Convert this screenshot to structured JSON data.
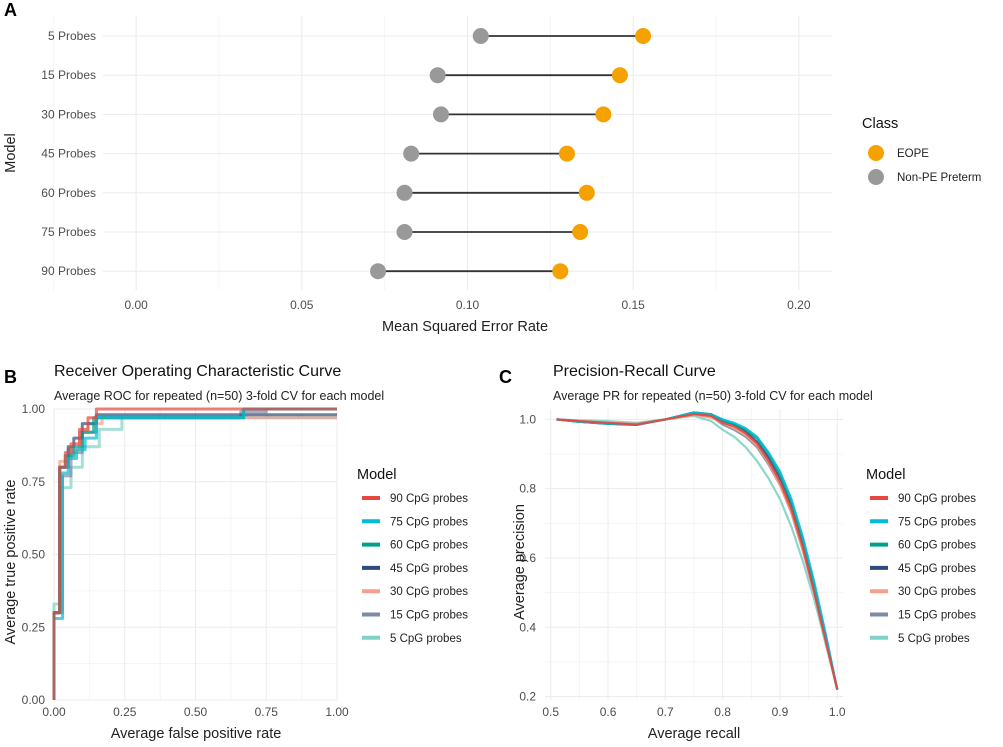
{
  "colors": {
    "eope": "#f5a100",
    "nonpe": "#999999",
    "segment": "#333333",
    "p90": "#e8473f",
    "p75": "#00bcd6",
    "p60": "#00a08a",
    "p45": "#2f4b7c",
    "p30": "#f4a08a",
    "p15": "#7e8aa6",
    "p5": "#7fd3c6"
  },
  "chart_data": [
    {
      "panel": "A",
      "type": "scatter",
      "subtype": "dumbbell",
      "title": "",
      "xlabel": "Mean Squared Error Rate",
      "ylabel": "Model",
      "xlim": [
        -0.01,
        0.21
      ],
      "xticks": [
        "0.00",
        "0.05",
        "0.10",
        "0.15",
        "0.20"
      ],
      "xtick_values": [
        0.0,
        0.05,
        0.1,
        0.15,
        0.2
      ],
      "categories": [
        "5 Probes",
        "15 Probes",
        "30 Probes",
        "45 Probes",
        "60 Probes",
        "75 Probes",
        "90 Probes"
      ],
      "legend": {
        "title": "Class",
        "position": "right",
        "items": [
          "EOPE",
          "Non-PE Preterm"
        ]
      },
      "series": [
        {
          "name": "EOPE",
          "values": [
            0.153,
            0.146,
            0.141,
            0.13,
            0.136,
            0.134,
            0.128
          ]
        },
        {
          "name": "Non-PE Preterm",
          "values": [
            0.104,
            0.091,
            0.092,
            0.083,
            0.081,
            0.081,
            0.073
          ]
        }
      ]
    },
    {
      "panel": "B",
      "type": "line",
      "subtype": "step",
      "title": "Receiver Operating Characteristic Curve",
      "subtitle": "Average ROC for repeated (n=50) 3-fold CV for each model",
      "xlabel": "Average false positive rate",
      "ylabel": "Average true positive rate",
      "xlim": [
        0,
        1
      ],
      "ylim": [
        0,
        1
      ],
      "xticks": [
        "0.00",
        "0.25",
        "0.50",
        "0.75",
        "1.00"
      ],
      "yticks": [
        "0.00",
        "0.25",
        "0.50",
        "0.75",
        "1.00"
      ],
      "legend": {
        "title": "Model",
        "position": "right"
      },
      "series": [
        {
          "name": "90 CpG probes",
          "x": [
            0,
            0,
            0.02,
            0.02,
            0.04,
            0.04,
            0.06,
            0.06,
            0.09,
            0.09,
            0.12,
            0.12,
            0.15,
            0.15,
            1.0
          ],
          "y": [
            0,
            0.3,
            0.3,
            0.8,
            0.8,
            0.85,
            0.85,
            0.88,
            0.88,
            0.93,
            0.93,
            0.97,
            0.97,
            1.0,
            1.0
          ]
        },
        {
          "name": "75 CpG probes",
          "x": [
            0,
            0,
            0.03,
            0.03,
            0.05,
            0.05,
            0.08,
            0.08,
            0.11,
            0.11,
            0.15,
            0.15,
            0.67,
            0.67,
            1.0
          ],
          "y": [
            0,
            0.28,
            0.28,
            0.78,
            0.78,
            0.83,
            0.83,
            0.86,
            0.86,
            0.9,
            0.9,
            0.97,
            0.97,
            1.0,
            1.0
          ]
        },
        {
          "name": "60 CpG probes",
          "x": [
            0,
            0,
            0.02,
            0.02,
            0.04,
            0.04,
            0.07,
            0.07,
            0.1,
            0.1,
            0.14,
            0.14,
            0.67,
            0.67,
            1.0
          ],
          "y": [
            0,
            0.3,
            0.3,
            0.8,
            0.8,
            0.84,
            0.84,
            0.87,
            0.87,
            0.92,
            0.92,
            0.97,
            0.97,
            1.0,
            1.0
          ]
        },
        {
          "name": "45 CpG probes",
          "x": [
            0,
            0,
            0.02,
            0.02,
            0.05,
            0.05,
            0.07,
            0.07,
            0.1,
            0.1,
            0.15,
            0.15,
            1.0
          ],
          "y": [
            0,
            0.3,
            0.3,
            0.8,
            0.8,
            0.87,
            0.87,
            0.9,
            0.9,
            0.95,
            0.95,
            0.98,
            0.98
          ]
        },
        {
          "name": "30 CpG probes",
          "x": [
            0,
            0,
            0.02,
            0.02,
            0.05,
            0.05,
            0.09,
            0.09,
            0.12,
            0.12,
            0.17,
            0.17,
            1.0
          ],
          "y": [
            0,
            0.3,
            0.3,
            0.82,
            0.82,
            0.86,
            0.86,
            0.92,
            0.92,
            0.95,
            0.95,
            0.97,
            0.97
          ]
        },
        {
          "name": "15 CpG probes",
          "x": [
            0,
            0,
            0.03,
            0.03,
            0.06,
            0.06,
            0.1,
            0.1,
            0.15,
            0.15,
            0.66,
            0.66,
            0.75,
            0.75,
            1.0
          ],
          "y": [
            0,
            0.3,
            0.3,
            0.77,
            0.77,
            0.85,
            0.85,
            0.92,
            0.92,
            0.97,
            0.97,
            0.99,
            0.99,
            1.0,
            1.0
          ]
        },
        {
          "name": "5 CpG probes",
          "x": [
            0,
            0,
            0.02,
            0.02,
            0.06,
            0.06,
            0.1,
            0.1,
            0.16,
            0.16,
            0.24,
            0.24,
            1.0
          ],
          "y": [
            0,
            0.33,
            0.33,
            0.73,
            0.73,
            0.8,
            0.8,
            0.87,
            0.87,
            0.93,
            0.93,
            0.97,
            0.97
          ]
        }
      ]
    },
    {
      "panel": "C",
      "type": "line",
      "title": "Precision-Recall Curve",
      "subtitle": "Average PR for repeated (n=50) 3-fold CV for each model",
      "xlabel": "Average recall",
      "ylabel": "Average precision",
      "xlim": [
        0.49,
        1.01
      ],
      "ylim": [
        0.19,
        1.03
      ],
      "xticks": [
        "0.5",
        "0.6",
        "0.7",
        "0.8",
        "0.9",
        "1.0"
      ],
      "yticks": [
        "0.2",
        "0.4",
        "0.6",
        "0.8",
        "1.0"
      ],
      "legend": {
        "title": "Model",
        "position": "right"
      },
      "series": [
        {
          "name": "90 CpG probes",
          "x": [
            0.51,
            0.55,
            0.6,
            0.65,
            0.7,
            0.75,
            0.78,
            0.8,
            0.82,
            0.84,
            0.86,
            0.88,
            0.9,
            0.92,
            0.94,
            0.96,
            0.98,
            1.0
          ],
          "y": [
            1.0,
            0.995,
            0.99,
            0.985,
            1.0,
            1.015,
            1.01,
            0.99,
            0.98,
            0.96,
            0.93,
            0.88,
            0.82,
            0.74,
            0.63,
            0.5,
            0.36,
            0.22
          ]
        },
        {
          "name": "75 CpG probes",
          "x": [
            0.51,
            0.55,
            0.6,
            0.65,
            0.7,
            0.75,
            0.78,
            0.8,
            0.82,
            0.84,
            0.86,
            0.88,
            0.9,
            0.92,
            0.94,
            0.96,
            0.98,
            1.0
          ],
          "y": [
            1.0,
            0.993,
            0.988,
            0.985,
            1.0,
            1.02,
            1.015,
            1.0,
            0.99,
            0.975,
            0.95,
            0.905,
            0.85,
            0.77,
            0.66,
            0.53,
            0.38,
            0.22
          ]
        },
        {
          "name": "60 CpG probes",
          "x": [
            0.51,
            0.55,
            0.6,
            0.65,
            0.7,
            0.75,
            0.78,
            0.8,
            0.82,
            0.84,
            0.86,
            0.88,
            0.9,
            0.92,
            0.94,
            0.96,
            0.98,
            1.0
          ],
          "y": [
            1.0,
            0.993,
            0.988,
            0.985,
            1.0,
            1.02,
            1.012,
            0.995,
            0.985,
            0.97,
            0.945,
            0.9,
            0.84,
            0.76,
            0.65,
            0.52,
            0.37,
            0.22
          ]
        },
        {
          "name": "45 CpG probes",
          "x": [
            0.51,
            0.55,
            0.6,
            0.65,
            0.7,
            0.75,
            0.78,
            0.8,
            0.82,
            0.84,
            0.86,
            0.88,
            0.9,
            0.92,
            0.94,
            0.96,
            0.98,
            1.0
          ],
          "y": [
            1.0,
            0.993,
            0.987,
            0.984,
            1.0,
            1.02,
            1.015,
            0.998,
            0.985,
            0.965,
            0.935,
            0.89,
            0.83,
            0.75,
            0.64,
            0.51,
            0.37,
            0.22
          ]
        },
        {
          "name": "30 CpG probes",
          "x": [
            0.51,
            0.55,
            0.6,
            0.65,
            0.7,
            0.75,
            0.78,
            0.8,
            0.82,
            0.84,
            0.86,
            0.88,
            0.9,
            0.92,
            0.94,
            0.96,
            0.98,
            1.0
          ],
          "y": [
            1.0,
            0.995,
            0.99,
            0.987,
            1.0,
            1.013,
            1.005,
            0.99,
            0.975,
            0.955,
            0.925,
            0.875,
            0.81,
            0.73,
            0.62,
            0.5,
            0.36,
            0.22
          ]
        },
        {
          "name": "15 CpG probes",
          "x": [
            0.51,
            0.55,
            0.6,
            0.65,
            0.7,
            0.75,
            0.78,
            0.8,
            0.82,
            0.84,
            0.86,
            0.88,
            0.9,
            0.92,
            0.94,
            0.96,
            0.98,
            1.0
          ],
          "y": [
            1.0,
            0.995,
            0.99,
            0.987,
            1.0,
            1.015,
            1.008,
            0.985,
            0.97,
            0.95,
            0.92,
            0.87,
            0.81,
            0.73,
            0.62,
            0.5,
            0.36,
            0.22
          ]
        },
        {
          "name": "5 CpG probes",
          "x": [
            0.51,
            0.55,
            0.6,
            0.65,
            0.7,
            0.75,
            0.78,
            0.8,
            0.82,
            0.84,
            0.86,
            0.88,
            0.9,
            0.92,
            0.94,
            0.96,
            0.98,
            1.0
          ],
          "y": [
            1.0,
            0.997,
            0.995,
            0.99,
            1.0,
            1.01,
            0.995,
            0.97,
            0.95,
            0.92,
            0.88,
            0.83,
            0.77,
            0.69,
            0.59,
            0.48,
            0.35,
            0.22
          ]
        }
      ]
    }
  ]
}
